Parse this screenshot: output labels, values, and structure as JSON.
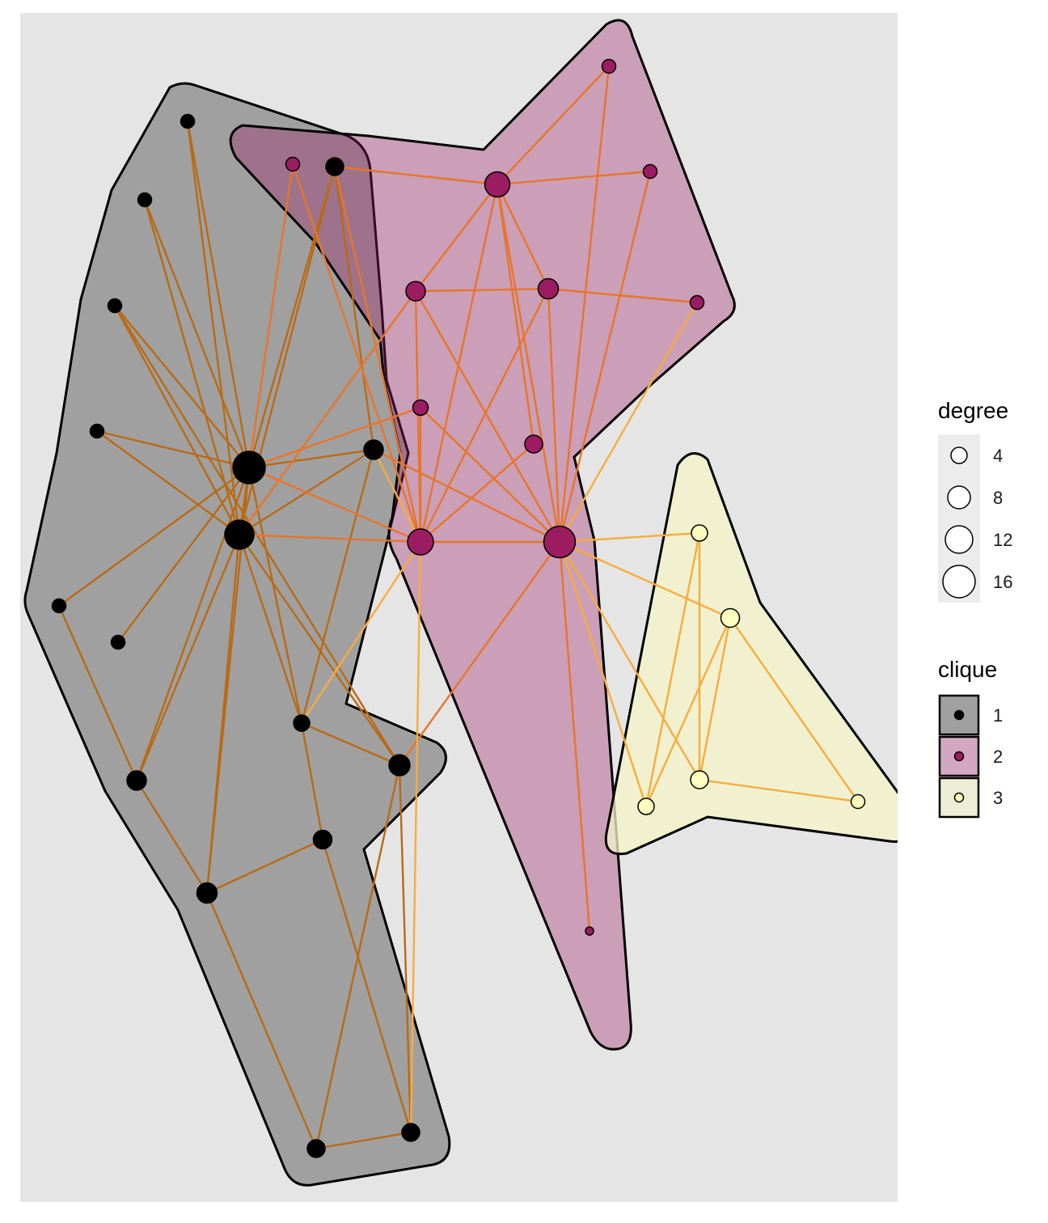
{
  "legend": {
    "degree": {
      "title": "degree",
      "entries": [
        {
          "value": 4,
          "label": "4"
        },
        {
          "value": 8,
          "label": "8"
        },
        {
          "value": 12,
          "label": "12"
        },
        {
          "value": 16,
          "label": "16"
        }
      ]
    },
    "clique": {
      "title": "clique",
      "entries": [
        {
          "label": "1",
          "color": "#000000",
          "hull": "#a0a0a0"
        },
        {
          "label": "2",
          "color": "#9c1c62",
          "hull": "#d3a7c1"
        },
        {
          "label": "3",
          "color": "#fcfdbf",
          "hull": "#ededd6"
        }
      ]
    }
  },
  "colors": {
    "panel": "#e5e5e5",
    "edge_clique_1": "#b86a14",
    "edge_clique_2": "#e8742a",
    "edge_clique_3": "#f8ac3c",
    "edge_between": "#f59a26"
  }
}
